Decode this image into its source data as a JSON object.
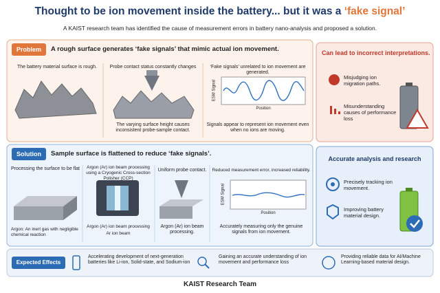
{
  "header": {
    "title": "Thought to be ion movement inside the battery... but it was a ",
    "title_highlight": "‘fake signal’",
    "subtitle": "A KAIST research team has identified the cause of measurement errors in battery nano-analysis and proposed a solution."
  },
  "problem": {
    "tag": "Problem",
    "heading": "A rough surface generates ‘fake signals’ that mimic actual ion movement.",
    "panels": [
      {
        "top": "The battery material surface is rough."
      },
      {
        "top": "Probe contact status constantly changes",
        "bottom": "The varying surface height causes inconsistent probe-sample contact."
      },
      {
        "top": "‘Fake signals’ unrelated to ion movement are generated.",
        "y_label": "ESM Signal",
        "x_label": "Position",
        "bottom": "Signals appear to represent ion movement even when no ions are moving."
      }
    ],
    "side": {
      "title": "Can lead to incorrect interpretations.",
      "items": [
        "Misjudging ion migration paths.",
        "Misunderstanding causes of performance loss"
      ]
    }
  },
  "solution": {
    "tag": "Solution",
    "heading": "Sample surface is flattened to reduce ‘fake signals’.",
    "panels": [
      {
        "top": "Processing the surface to be flat",
        "bottom": "Argon: An inert gas with negligible chemical reaction"
      },
      {
        "top": "Argon (Ar) ion beam processing using a Cryogenic Cross-section Polisher (CCP)",
        "bottom": "Argon (Ar) ion beam processing",
        "beam": "Ar ion beam"
      },
      {
        "top": "Uniform probe contact.",
        "bottom": "Argon (Ar) ion beam processing."
      },
      {
        "top": "Reduced measurement error, increased reliability.",
        "y_label": "ESM Signal",
        "x_label": "Position",
        "bottom": "Accurately measuring only the genuine signals from ion movement."
      }
    ],
    "side": {
      "title": "Accurate analysis and research",
      "items": [
        "Precisely tracking ion movement.",
        "Improving battery material design."
      ]
    }
  },
  "effects": {
    "tag": "Expected Effects",
    "items": [
      "Accelerating development of next-generation batteries like Li-ion, Solid-state, and Sodium-ion",
      "Gaining an accurate understanding of ion movement and performance loss",
      "Providing reliable data for AI/Machine Learning-based material design."
    ]
  },
  "footer": {
    "text": "KAIST Research Team"
  }
}
